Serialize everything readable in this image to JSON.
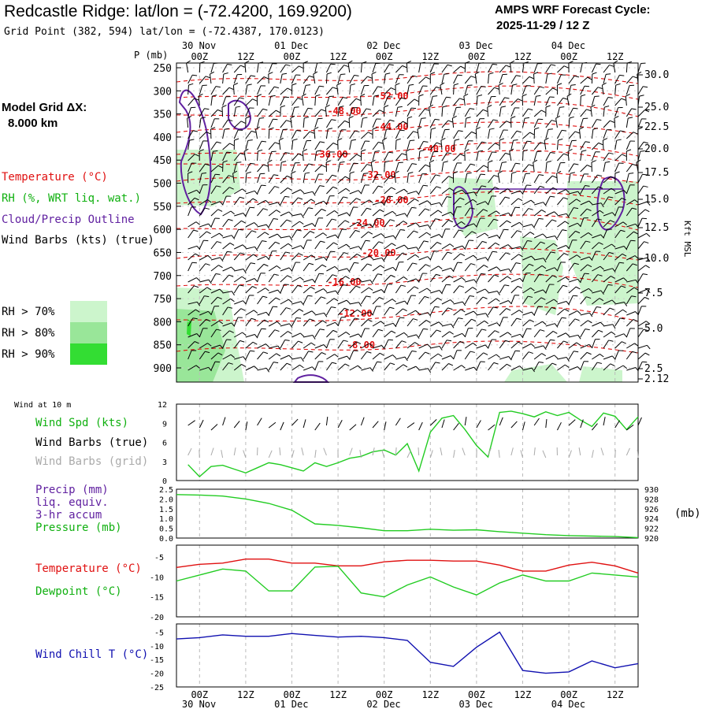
{
  "header": {
    "title": "Redcastle Ridge:  lat/lon = (-72.4200, 169.9200)",
    "subtitle": "Grid Point (382, 594) lat/lon = (-72.4387, 170.0123)",
    "cycle_line1": "AMPS WRF Forecast Cycle:",
    "cycle_line2": "2025-11-29 / 12  Z"
  },
  "legend": {
    "model_grid_line1": "Model Grid ΔX:",
    "model_grid_line2": "8.000 km",
    "temperature": "Temperature (°C)",
    "rh": "RH (%, WRT liq. wat.)",
    "cloud": "Cloud/Precip Outline",
    "wind_barbs": "Wind Barbs (kts) (true)",
    "rh70": "RH > 70%",
    "rh80": "RH > 80%",
    "rh90": "RH > 90%"
  },
  "colors": {
    "temperature": "#e01010",
    "rh_text": "#10b010",
    "cloud": "#6020a0",
    "rh70": "#ccf5cc",
    "rh80": "#99e699",
    "rh90": "#33dd33",
    "blue": "#1010b0",
    "grey": "#aaaaaa"
  },
  "time_axis": {
    "top_dates": [
      "30 Nov",
      "01 Dec",
      "02 Dec",
      "03 Dec",
      "04 Dec"
    ],
    "hour_labels": [
      "00Z",
      "12Z",
      "00Z",
      "12Z",
      "00Z",
      "12Z",
      "00Z",
      "12Z",
      "00Z",
      "12Z"
    ],
    "bottom_dates": [
      "30 Nov",
      "01 Dec",
      "02 Dec",
      "03 Dec",
      "04 Dec"
    ],
    "range_hours": [
      -6,
      114
    ]
  },
  "chart_data": [
    {
      "type": "line",
      "title": "Cross-section",
      "ylabel": "P (mb)",
      "y2label": "Kft MSL",
      "pressure_ticks": [
        "250",
        "300",
        "350",
        "400",
        "450",
        "500",
        "550",
        "600",
        "650",
        "700",
        "750",
        "800",
        "850",
        "900"
      ],
      "kft_ticks": [
        "30.0",
        "25.0",
        "22.5",
        "20.0",
        "17.5",
        "15.0",
        "12.5",
        "10.0",
        "7.5",
        "5.0",
        "2.5",
        "2.12"
      ],
      "isotherm_labels": [
        "-52.00",
        "-48.00",
        "-44.00",
        "-40.00",
        "-36.00",
        "-32.00",
        "-28.00",
        "-24.00",
        "-20.00",
        "-16.00",
        "-12.00",
        "-8.00"
      ]
    },
    {
      "type": "line",
      "panel_title": "Wind at 10 m",
      "labels": [
        "Wind Spd (kts)",
        "Wind Barbs (true)",
        "Wind Barbs (grid)"
      ],
      "y_ticks": [
        "12",
        "9",
        "6",
        "3",
        "0"
      ],
      "ylim": [
        0,
        12
      ],
      "x": [
        -3,
        0,
        3,
        6,
        9,
        12,
        15,
        18,
        21,
        24,
        27,
        30,
        33,
        36,
        39,
        42,
        45,
        48,
        51,
        54,
        57,
        60,
        63,
        66,
        69,
        72,
        75,
        78,
        81,
        84,
        87,
        90,
        93,
        96,
        99,
        102,
        105,
        108,
        111,
        114
      ],
      "series": [
        {
          "name": "Wind Spd (kts)",
          "values": [
            2.5,
            0.6,
            2.2,
            2.4,
            1.8,
            1.2,
            2.0,
            2.8,
            2.5,
            2.0,
            1.5,
            2.8,
            2.2,
            2.8,
            3.5,
            3.8,
            4.5,
            4.8,
            4.0,
            5.8,
            1.5,
            7.6,
            9.8,
            10.2,
            8.0,
            5.5,
            3.7,
            10.7,
            10.9,
            10.5,
            10.0,
            10.8,
            10.2,
            10.7,
            9.5,
            8.5,
            10.6,
            10.1,
            8.0,
            10.0
          ]
        }
      ]
    },
    {
      "type": "line",
      "labels": [
        "Precip (mm)",
        "liq. equiv.",
        "3-hr accum",
        "Pressure (mb)"
      ],
      "y_ticks": [
        "2.5",
        "2.0",
        "1.5",
        "1.0",
        "0.5",
        "0.0"
      ],
      "y2_ticks": [
        "930",
        "928",
        "926",
        "924",
        "922",
        "920"
      ],
      "y2label": "(mb)",
      "ylim": [
        0.0,
        2.5
      ],
      "x": [
        -6,
        0,
        6,
        12,
        18,
        24,
        30,
        36,
        42,
        48,
        54,
        60,
        66,
        72,
        78,
        84,
        90,
        96,
        102,
        108,
        114
      ],
      "series": [
        {
          "name": "Pressure (mb)",
          "values": [
            928.9,
            928.8,
            928.6,
            928.0,
            927.1,
            925.7,
            922.9,
            922.6,
            922.1,
            921.5,
            921.5,
            921.8,
            921.6,
            921.7,
            921.3,
            921.0,
            920.7,
            920.5,
            920.4,
            920.3,
            920.1
          ]
        }
      ]
    },
    {
      "type": "line",
      "labels": [
        "Temperature (°C)",
        "Dewpoint (°C)"
      ],
      "y_ticks": [
        "-5",
        "-10",
        "-15",
        "-20"
      ],
      "ylim": [
        -20,
        -2
      ],
      "x": [
        -6,
        0,
        6,
        12,
        18,
        24,
        30,
        36,
        42,
        48,
        54,
        60,
        66,
        72,
        78,
        84,
        90,
        96,
        102,
        108,
        114
      ],
      "series": [
        {
          "name": "Temperature (°C)",
          "values": [
            -7.6,
            -6.8,
            -6.5,
            -5.5,
            -5.5,
            -6.5,
            -6.5,
            -7.2,
            -7.2,
            -6.2,
            -5.8,
            -5.8,
            -6.0,
            -6.0,
            -7.0,
            -8.5,
            -8.5,
            -7.0,
            -6.3,
            -7.2,
            -9.0
          ]
        },
        {
          "name": "Dewpoint (°C)",
          "values": [
            -11.0,
            -9.5,
            -8.0,
            -8.5,
            -13.5,
            -13.5,
            -7.5,
            -7.3,
            -14.0,
            -15.0,
            -12.0,
            -10.0,
            -12.5,
            -14.5,
            -11.5,
            -9.5,
            -11.0,
            -11.0,
            -9.0,
            -9.5,
            -10.0
          ]
        }
      ]
    },
    {
      "type": "line",
      "labels": [
        "Wind Chill T (°C)"
      ],
      "y_ticks": [
        "-5",
        "-10",
        "-15",
        "-20",
        "-25"
      ],
      "ylim": [
        -25,
        -2
      ],
      "x": [
        -6,
        0,
        6,
        12,
        18,
        24,
        30,
        36,
        42,
        48,
        54,
        60,
        66,
        72,
        78,
        84,
        90,
        96,
        102,
        108,
        114
      ],
      "series": [
        {
          "name": "Wind Chill T (°C)",
          "values": [
            -7.5,
            -7.0,
            -6.0,
            -6.5,
            -6.5,
            -5.5,
            -6.2,
            -6.8,
            -6.5,
            -7.0,
            -8.0,
            -16.0,
            -17.5,
            -10.5,
            -5.0,
            -19.0,
            -20.0,
            -19.5,
            -15.5,
            -18.0,
            -16.5
          ]
        }
      ]
    }
  ]
}
